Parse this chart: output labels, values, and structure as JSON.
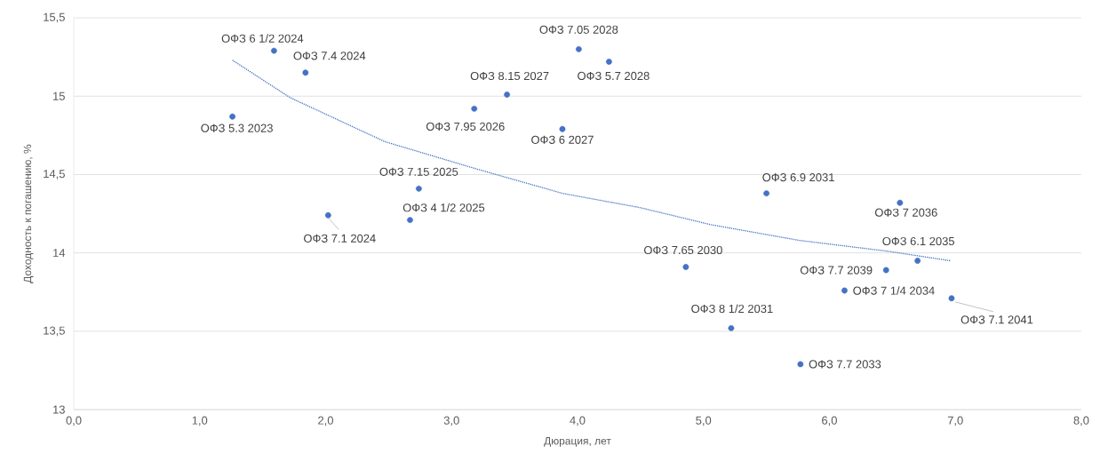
{
  "chart_data": {
    "type": "scatter",
    "xlabel": "Дюрация, лет",
    "ylabel": "Доходность к погашению, %",
    "xlim": [
      0,
      8
    ],
    "ylim": [
      13,
      15.5
    ],
    "xticks": [
      {
        "value": 0,
        "label": "0,0"
      },
      {
        "value": 1,
        "label": "1,0"
      },
      {
        "value": 2,
        "label": "2,0"
      },
      {
        "value": 3,
        "label": "3,0"
      },
      {
        "value": 4,
        "label": "4,0"
      },
      {
        "value": 5,
        "label": "5,0"
      },
      {
        "value": 6,
        "label": "6,0"
      },
      {
        "value": 7,
        "label": "7,0"
      },
      {
        "value": 8,
        "label": "8,0"
      }
    ],
    "yticks": [
      13,
      {
        "value": 13.5,
        "label": "13,5"
      },
      14,
      {
        "value": 14.5,
        "label": "14,5"
      },
      15,
      {
        "value": 15.5,
        "label": "15,5"
      }
    ],
    "grid": "y",
    "marker": "circle",
    "series": [
      {
        "color": "#4472c4",
        "x": [
          1.59,
          1.84,
          1.26,
          2.02,
          2.74,
          2.67,
          3.18,
          3.44,
          4.01,
          4.25,
          3.88,
          5.5,
          4.86,
          5.22,
          5.77,
          6.56,
          6.7,
          6.45,
          6.12,
          6.97
        ],
        "values": [
          15.29,
          15.15,
          14.87,
          14.24,
          14.41,
          14.21,
          14.92,
          15.01,
          15.3,
          15.22,
          14.79,
          14.38,
          13.91,
          13.52,
          13.29,
          14.32,
          13.95,
          13.89,
          13.76,
          13.71
        ]
      },
      {
        "type": "line",
        "marker": "none",
        "line_style": "dotted",
        "color": "#4472c4",
        "x": [
          1.26,
          1.72,
          2.47,
          3.18,
          3.88,
          4.49,
          5.06,
          5.76,
          6.47,
          6.96
        ],
        "values": [
          15.23,
          14.99,
          14.71,
          14.54,
          14.38,
          14.29,
          14.18,
          14.08,
          14.01,
          13.95
        ]
      }
    ],
    "annotations": [
      {
        "text": "ОФЗ 6 1/2 2024",
        "x": 1.59,
        "y": 15.29
      },
      {
        "text": "ОФЗ 7.4 2024",
        "x": 1.84,
        "y": 15.15
      },
      {
        "text": "ОФЗ 5.3 2023",
        "x": 1.26,
        "y": 14.87
      },
      {
        "text": "ОФЗ 7.1 2024",
        "x": 2.02,
        "y": 14.24
      },
      {
        "text": "ОФЗ 7.15 2025",
        "x": 2.74,
        "y": 14.41
      },
      {
        "text": "ОФЗ 4 1/2 2025",
        "x": 2.67,
        "y": 14.21
      },
      {
        "text": "ОФЗ 7.95 2026",
        "x": 3.18,
        "y": 14.92
      },
      {
        "text": "ОФЗ 8.15 2027",
        "x": 3.44,
        "y": 15.01
      },
      {
        "text": "ОФЗ 7.05 2028",
        "x": 4.01,
        "y": 15.3
      },
      {
        "text": "ОФЗ 5.7 2028",
        "x": 4.25,
        "y": 15.22
      },
      {
        "text": "ОФЗ 6 2027",
        "x": 3.88,
        "y": 14.79
      },
      {
        "text": "ОФЗ 6.9 2031",
        "x": 5.5,
        "y": 14.38
      },
      {
        "text": "ОФЗ 7.65 2030",
        "x": 4.86,
        "y": 13.91
      },
      {
        "text": "ОФЗ 8 1/2 2031",
        "x": 5.22,
        "y": 13.52
      },
      {
        "text": "ОФЗ 7.7 2033",
        "x": 5.77,
        "y": 13.29
      },
      {
        "text": "ОФЗ 7 2036",
        "x": 6.56,
        "y": 14.32
      },
      {
        "text": "ОФЗ 6.1 2035",
        "x": 6.7,
        "y": 13.95
      },
      {
        "text": "ОФЗ 7.7 2039",
        "x": 6.45,
        "y": 13.89
      },
      {
        "text": "ОФЗ 7 1/4 2034",
        "x": 6.12,
        "y": 13.76
      },
      {
        "text": "ОФЗ 7.1 2041",
        "x": 6.97,
        "y": 13.71
      }
    ]
  }
}
